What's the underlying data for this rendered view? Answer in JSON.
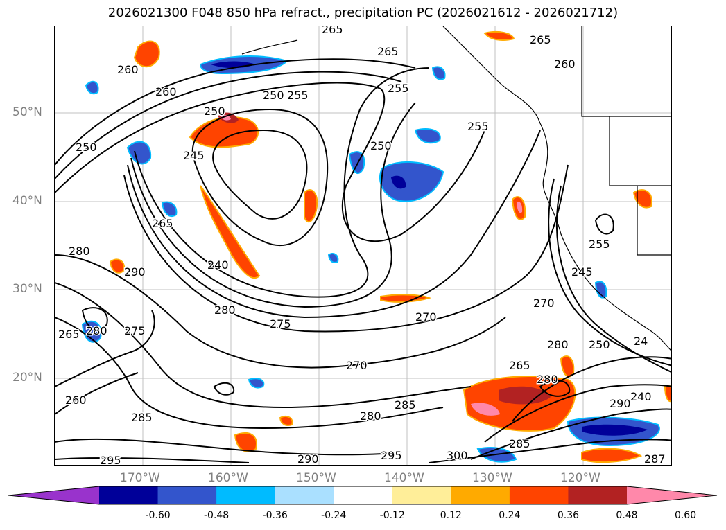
{
  "title": "2026021300 F048 850 hPa refract., precipitation PC (2026021612 - 2026021712)",
  "lat_labels": [
    "50°N",
    "40°N",
    "30°N",
    "20°N"
  ],
  "lon_labels": [
    "170°W",
    "160°W",
    "150°W",
    "140°W",
    "130°W",
    "120°W"
  ],
  "contour_labels": [
    "265",
    "260",
    "250",
    "255",
    "260",
    "250",
    "255",
    "265",
    "265",
    "260",
    "250",
    "245",
    "255",
    "250",
    "280",
    "265",
    "240",
    "280",
    "275",
    "270",
    "290",
    "265",
    "280",
    "275",
    "270",
    "270",
    "280",
    "285",
    "285",
    "280",
    "290",
    "295",
    "300",
    "295",
    "260",
    "265",
    "245",
    "250",
    "255",
    "24",
    "240",
    "287",
    "290",
    "285",
    "280"
  ],
  "colorbar": {
    "ticks": [
      "-0.60",
      "-0.48",
      "-0.36",
      "-0.24",
      "-0.12",
      "0.12",
      "0.24",
      "0.36",
      "0.48",
      "0.60"
    ],
    "colors": [
      "#9933cc",
      "#000099",
      "#3355cc",
      "#00bbff",
      "#aae0ff",
      "#ffffff",
      "#ffee99",
      "#ffaa00",
      "#ff4400",
      "#b22222",
      "#ff88aa"
    ]
  }
}
